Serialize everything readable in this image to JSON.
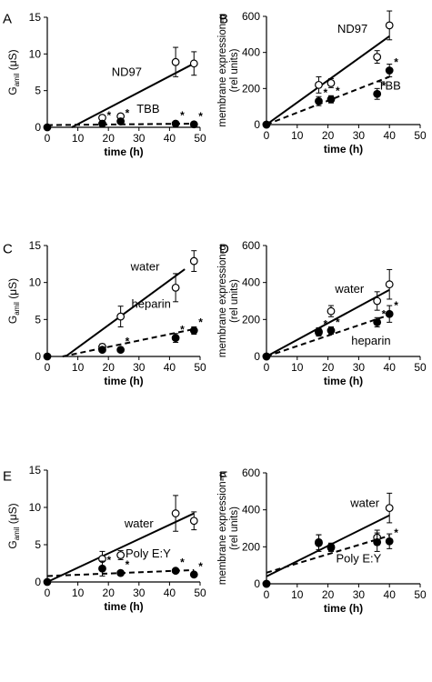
{
  "chart_data": [
    {
      "type": "scatter",
      "panel_label": "A",
      "xlabel": "time (h)",
      "ylabel_main": "G",
      "ylabel_sub": "amil",
      "ylabel_unit": " (μS)",
      "xlim": [
        0,
        50
      ],
      "ylim": [
        0,
        15
      ],
      "xticks": [
        0,
        10,
        20,
        30,
        40,
        50
      ],
      "yticks": [
        0,
        5,
        10,
        15
      ],
      "series": [
        {
          "name": "ND97",
          "marker": "open",
          "line": "solid",
          "x": [
            18,
            24,
            42,
            48
          ],
          "y": [
            1.3,
            1.5,
            8.9,
            8.7
          ],
          "err": [
            0.2,
            0.2,
            2.0,
            1.6
          ],
          "fit": [
            [
              8,
              0
            ],
            [
              48,
              8.7
            ]
          ],
          "sig": [
            false,
            false,
            false,
            false
          ]
        },
        {
          "name": "TBB",
          "marker": "filled",
          "line": "dashed",
          "x": [
            0,
            18,
            24,
            42,
            48
          ],
          "y": [
            0,
            0.5,
            0.8,
            0.5,
            0.4
          ],
          "err": [
            0,
            0.1,
            0.2,
            0.1,
            0.1
          ],
          "fit": [
            [
              0,
              0.3
            ],
            [
              48,
              0.5
            ]
          ],
          "sig": [
            false,
            true,
            true,
            true,
            true
          ]
        }
      ],
      "labels": [
        {
          "text": "ND97",
          "x": 26,
          "y": 7.0
        },
        {
          "text": "TBB",
          "x": 33,
          "y": 2.0
        }
      ]
    },
    {
      "type": "scatter",
      "panel_label": "B",
      "xlabel": "time (h)",
      "ylabel_main": "membrane expression-α",
      "ylabel_sub2": "(rel units)",
      "xlim": [
        0,
        50
      ],
      "ylim": [
        0,
        600
      ],
      "xticks": [
        0,
        10,
        20,
        30,
        40,
        50
      ],
      "yticks": [
        0,
        200,
        400,
        600
      ],
      "series": [
        {
          "name": "ND97",
          "marker": "open",
          "line": "solid",
          "x": [
            0,
            17,
            21,
            36,
            40
          ],
          "y": [
            0,
            220,
            230,
            375,
            550
          ],
          "err": [
            0,
            45,
            25,
            35,
            80
          ],
          "fit": [
            [
              0,
              0
            ],
            [
              40,
              490
            ]
          ],
          "sig": [
            false,
            false,
            false,
            false,
            false
          ]
        },
        {
          "name": "TBB",
          "marker": "filled",
          "line": "dashed",
          "x": [
            0,
            17,
            21,
            36,
            40
          ],
          "y": [
            0,
            130,
            140,
            170,
            300
          ],
          "err": [
            0,
            25,
            20,
            30,
            35
          ],
          "fit": [
            [
              0,
              0
            ],
            [
              40,
              265
            ]
          ],
          "sig": [
            false,
            true,
            true,
            true,
            true
          ]
        }
      ],
      "labels": [
        {
          "text": "ND97",
          "x": 28,
          "y": 510
        },
        {
          "text": "TBB",
          "x": 40,
          "y": 195
        }
      ]
    },
    {
      "type": "scatter",
      "panel_label": "C",
      "xlabel": "time (h)",
      "ylabel_main": "G",
      "ylabel_sub": "amil",
      "ylabel_unit": " (μS)",
      "xlim": [
        0,
        50
      ],
      "ylim": [
        0,
        15
      ],
      "xticks": [
        0,
        10,
        20,
        30,
        40,
        50
      ],
      "yticks": [
        0,
        5,
        10,
        15
      ],
      "series": [
        {
          "name": "water",
          "marker": "open",
          "line": "solid",
          "x": [
            18,
            24,
            42,
            48
          ],
          "y": [
            1.3,
            5.4,
            9.3,
            12.9
          ],
          "err": [
            0.4,
            1.4,
            1.9,
            1.4
          ],
          "fit": [
            [
              6,
              0
            ],
            [
              45,
              11.8
            ]
          ],
          "sig": [
            false,
            false,
            false,
            false
          ]
        },
        {
          "name": "heparin",
          "marker": "filled",
          "line": "dashed",
          "x": [
            0,
            18,
            24,
            42,
            48
          ],
          "y": [
            0,
            0.9,
            0.9,
            2.5,
            3.5
          ],
          "err": [
            0,
            0.2,
            0.3,
            0.6,
            0.5
          ],
          "fit": [
            [
              5,
              0
            ],
            [
              48,
              3.7
            ]
          ],
          "sig": [
            false,
            false,
            true,
            true,
            true
          ]
        }
      ],
      "labels": [
        {
          "text": "water",
          "x": 32,
          "y": 11.6
        },
        {
          "text": "heparin",
          "x": 34,
          "y": 6.6
        }
      ]
    },
    {
      "type": "scatter",
      "panel_label": "D",
      "xlabel": "time (h)",
      "ylabel_main": "membrane expression-α",
      "ylabel_sub2": "(rel units)",
      "xlim": [
        0,
        50
      ],
      "ylim": [
        0,
        600
      ],
      "xticks": [
        0,
        10,
        20,
        30,
        40,
        50
      ],
      "yticks": [
        0,
        200,
        400,
        600
      ],
      "series": [
        {
          "name": "water",
          "marker": "open",
          "line": "solid",
          "x": [
            0,
            17,
            21,
            36,
            40
          ],
          "y": [
            0,
            135,
            245,
            300,
            390
          ],
          "err": [
            0,
            20,
            30,
            50,
            80
          ],
          "fit": [
            [
              0,
              0
            ],
            [
              40,
              360
            ]
          ],
          "sig": [
            false,
            false,
            false,
            false,
            false
          ]
        },
        {
          "name": "heparin",
          "marker": "filled",
          "line": "dashed",
          "x": [
            0,
            17,
            21,
            36,
            40
          ],
          "y": [
            0,
            130,
            140,
            185,
            230
          ],
          "err": [
            0,
            20,
            20,
            25,
            45
          ],
          "fit": [
            [
              0,
              0
            ],
            [
              40,
              225
            ]
          ],
          "sig": [
            false,
            true,
            true,
            true,
            true
          ]
        }
      ],
      "labels": [
        {
          "text": "water",
          "x": 27,
          "y": 345
        },
        {
          "text": "heparin",
          "x": 34,
          "y": 65
        }
      ]
    },
    {
      "type": "scatter",
      "panel_label": "E",
      "xlabel": "time (h)",
      "ylabel_main": "G",
      "ylabel_sub": "amil",
      "ylabel_unit": " (μS)",
      "xlim": [
        0,
        50
      ],
      "ylim": [
        0,
        15
      ],
      "xticks": [
        0,
        10,
        20,
        30,
        40,
        50
      ],
      "yticks": [
        0,
        5,
        10,
        15
      ],
      "series": [
        {
          "name": "water",
          "marker": "open",
          "line": "solid",
          "x": [
            18,
            24,
            42,
            48
          ],
          "y": [
            3.1,
            3.6,
            9.2,
            8.2
          ],
          "err": [
            1.0,
            0.6,
            2.4,
            1.2
          ],
          "fit": [
            [
              0,
              0
            ],
            [
              48,
              9.2
            ]
          ],
          "sig": [
            false,
            false,
            false,
            false
          ]
        },
        {
          "name": "Poly E:Y",
          "marker": "filled",
          "line": "dashed",
          "x": [
            0,
            18,
            24,
            42,
            48
          ],
          "y": [
            0,
            1.8,
            1.2,
            1.5,
            1.0
          ],
          "err": [
            0,
            1.0,
            0.3,
            0.3,
            0.3
          ],
          "fit": [
            [
              0,
              0.8
            ],
            [
              48,
              1.6
            ]
          ],
          "sig": [
            false,
            true,
            true,
            true,
            true
          ]
        }
      ],
      "labels": [
        {
          "text": "water",
          "x": 30,
          "y": 7.3
        },
        {
          "text": "Poly E:Y",
          "x": 33,
          "y": 3.3
        }
      ]
    },
    {
      "type": "scatter",
      "panel_label": "F",
      "xlabel": "time (h)",
      "ylabel_main": "membrane expression-α",
      "ylabel_sub2": "(rel units)",
      "xlim": [
        0,
        50
      ],
      "ylim": [
        0,
        600
      ],
      "xticks": [
        0,
        10,
        20,
        30,
        40,
        50
      ],
      "yticks": [
        0,
        200,
        400,
        600
      ],
      "series": [
        {
          "name": "water",
          "marker": "open",
          "line": "solid",
          "x": [
            0,
            17,
            21,
            36,
            40
          ],
          "y": [
            0,
            225,
            200,
            250,
            410
          ],
          "err": [
            0,
            40,
            20,
            40,
            80
          ],
          "fit": [
            [
              0,
              40
            ],
            [
              40,
              370
            ]
          ],
          "sig": [
            false,
            false,
            false,
            false,
            false
          ]
        },
        {
          "name": "Poly E:Y",
          "marker": "filled",
          "line": "dashed",
          "x": [
            0,
            17,
            21,
            36,
            40
          ],
          "y": [
            0,
            220,
            195,
            225,
            230
          ],
          "err": [
            0,
            45,
            20,
            50,
            40
          ],
          "fit": [
            [
              0,
              60
            ],
            [
              40,
              260
            ]
          ],
          "sig": [
            false,
            false,
            false,
            false,
            true
          ]
        }
      ],
      "labels": [
        {
          "text": "water",
          "x": 32,
          "y": 415
        },
        {
          "text": "Poly E:Y",
          "x": 30,
          "y": 115
        }
      ]
    }
  ]
}
